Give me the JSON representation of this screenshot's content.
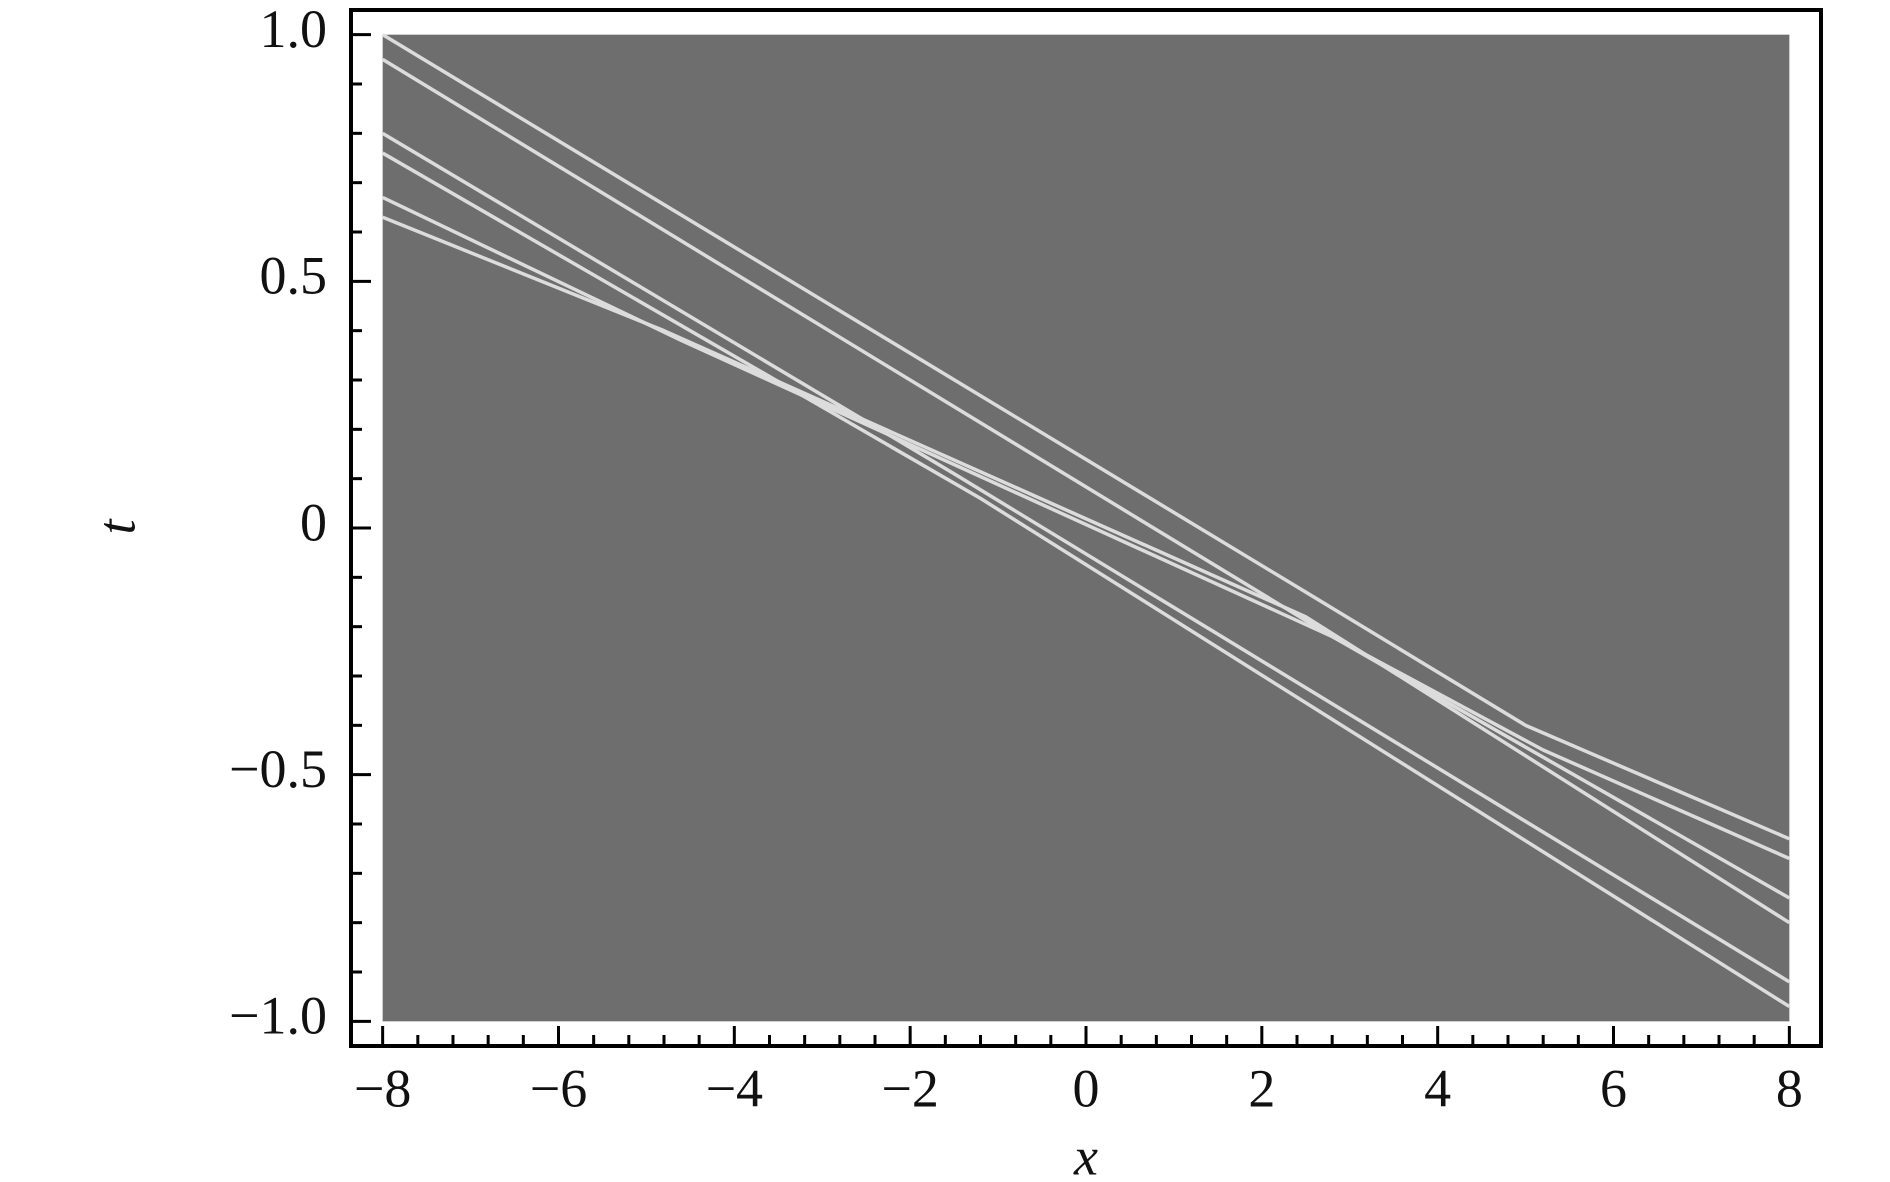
{
  "chart_data": {
    "type": "line",
    "xlabel": "x",
    "ylabel": "t",
    "xlim": [
      -8.36,
      8.36
    ],
    "ylim": [
      -1.05,
      1.05
    ],
    "xticks": [
      {
        "value": -8,
        "label": "−8"
      },
      {
        "value": -6,
        "label": "−6"
      },
      {
        "value": -4,
        "label": "−4"
      },
      {
        "value": -2,
        "label": "−2"
      },
      0,
      2,
      4,
      6,
      8
    ],
    "yticks": [
      {
        "value": -1,
        "label": "−1.0"
      },
      {
        "value": -0.5,
        "label": "−0.5"
      },
      0,
      0.5,
      {
        "value": 1,
        "label": "1.0"
      }
    ],
    "xminorticks": [
      -7.6,
      -7.2,
      -6.8,
      -6.4,
      -5.6,
      -5.2,
      -4.8,
      -4.4,
      -3.6,
      -3.2,
      -2.8,
      -2.4,
      -1.6,
      -1.2,
      -0.8,
      -0.4,
      0.4,
      0.8,
      1.2,
      1.6,
      2.4,
      2.8,
      3.2,
      3.6,
      4.4,
      4.8,
      5.2,
      5.6,
      6.4,
      6.8,
      7.2,
      7.6
    ],
    "yminorticks": [
      -0.9,
      -0.8,
      -0.7,
      -0.6,
      -0.4,
      -0.3,
      -0.2,
      -0.1,
      0.1,
      0.2,
      0.3,
      0.4,
      0.6,
      0.7,
      0.8,
      0.9
    ],
    "heatmap_extent": {
      "x": [
        -8,
        8
      ],
      "t": [
        -1,
        1
      ],
      "color": "#6e6e6e"
    },
    "series": [
      {
        "color": "#dcdcdc",
        "x": [
          -8,
          2.5,
          5,
          8
        ],
        "values": [
          1.0,
          -0.13,
          -0.4,
          -0.63
        ]
      },
      {
        "color": "#dcdcdc",
        "x": [
          -8,
          2.8,
          5.2,
          8
        ],
        "values": [
          0.95,
          -0.22,
          -0.45,
          -0.67
        ]
      },
      {
        "color": "#dcdcdc",
        "x": [
          -8,
          -1.5,
          8
        ],
        "values": [
          0.8,
          0.11,
          -0.92
        ]
      },
      {
        "color": "#dcdcdc",
        "x": [
          -8,
          -1.2,
          8
        ],
        "values": [
          0.76,
          0.06,
          -0.97
        ]
      },
      {
        "color": "#dcdcdc",
        "x": [
          -8,
          -4.6,
          2.8,
          8
        ],
        "values": [
          0.67,
          0.38,
          -0.22,
          -0.75
        ]
      },
      {
        "color": "#dcdcdc",
        "x": [
          -8,
          -4.8,
          2.5,
          8
        ],
        "values": [
          0.63,
          0.4,
          -0.18,
          -0.8
        ]
      }
    ]
  }
}
